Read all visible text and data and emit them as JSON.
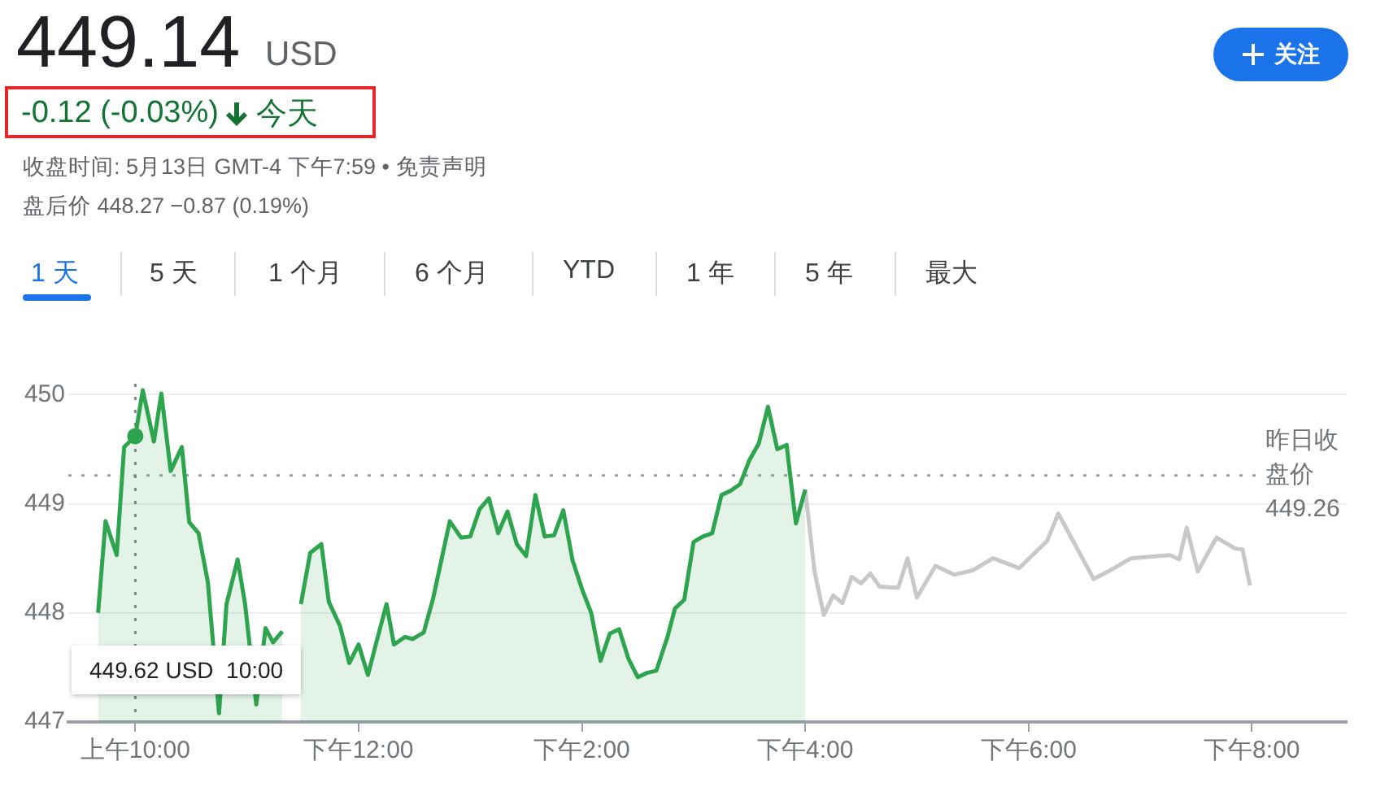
{
  "chart_data": {
    "type": "area",
    "title": "449.14",
    "subtitle": "-0.12 (-0.03%)",
    "annotations": [
      "USD",
      "今天",
      "收盘时间: 5月13日 GMT-4 下午7:59 • 免责声明",
      "盘后价 448.27 −0.87 (0.19%)",
      "1 天",
      "5 天",
      "1 个月",
      "6 个月",
      "YTD",
      "1 年",
      "5 年",
      "最大",
      "关注",
      "449.62 USD  10:00",
      "449.26"
    ],
    "series": [
      {
        "color": "#2ea44f",
        "x": [
          "--05-13T09:40",
          "--05-13T09:44",
          "--05-13T09:50",
          "--05-13T09:54",
          "--05-13T10:00",
          "--05-13T10:04",
          "--05-13T10:10",
          "--05-13T10:14",
          "--05-13T10:19",
          "--05-13T10:25",
          "--05-13T10:29",
          "--05-13T10:34",
          "--05-13T10:39",
          "--05-13T10:45",
          "--05-13T10:49",
          "--05-13T10:55",
          "--05-13T10:59",
          "--05-13T11:05",
          "--05-13T11:10",
          "--05-13T11:14",
          "--05-13T11:19",
          "--05-13T11:23",
          "--05-13T11:29",
          "--05-13T11:34",
          "--05-13T11:40",
          "--05-13T11:44",
          "--05-13T11:50",
          "--05-13T11:55",
          "--05-13T12:00",
          "--05-13T12:05",
          "--05-13T12:10",
          "--05-13T12:15",
          "--05-13T12:19",
          "--05-13T12:25",
          "--05-13T12:29",
          "--05-13T12:35",
          "--05-13T12:40",
          "--05-13T12:49",
          "--05-13T12:55",
          "--05-13T13:00",
          "--05-13T13:05",
          "--05-13T13:10",
          "--05-13T13:15",
          "--05-13T13:20",
          "--05-13T13:25",
          "--05-13T13:30",
          "--05-13T13:35",
          "--05-13T13:40",
          "--05-13T13:45",
          "--05-13T13:50",
          "--05-13T13:55",
          "--05-13T14:00",
          "--05-13T14:05",
          "--05-13T14:10",
          "--05-13T14:15",
          "--05-13T14:20",
          "--05-13T14:25",
          "--05-13T14:30",
          "--05-13T14:35",
          "--05-13T14:40",
          "--05-13T14:46",
          "--05-13T14:50",
          "--05-13T14:55",
          "--05-13T15:00",
          "--05-13T15:05",
          "--05-13T15:10",
          "--05-13T15:15",
          "--05-13T15:20",
          "--05-13T15:25",
          "--05-13T15:30",
          "--05-13T15:35",
          "--05-13T15:40",
          "--05-13T15:45",
          "--05-13T15:50",
          "--05-13T15:55",
          "--05-13T16:00"
        ],
        "values": [
          448.0,
          448.84,
          448.53,
          449.52,
          449.62,
          450.04,
          449.57,
          450.01,
          449.3,
          449.52,
          448.83,
          448.73,
          448.28,
          447.08,
          448.08,
          448.49,
          448.08,
          447.16,
          447.86,
          447.73,
          447.83,
          null,
          448.08,
          448.55,
          448.63,
          448.1,
          447.88,
          447.54,
          447.71,
          447.43,
          447.76,
          448.08,
          447.71,
          447.78,
          447.76,
          447.82,
          448.13,
          448.84,
          448.69,
          448.7,
          448.95,
          449.05,
          448.73,
          448.93,
          448.63,
          448.52,
          449.08,
          448.7,
          448.71,
          448.94,
          448.48,
          448.22,
          448.0,
          447.56,
          447.81,
          447.85,
          447.58,
          447.41,
          447.45,
          447.47,
          447.78,
          448.04,
          448.12,
          448.65,
          448.7,
          448.73,
          449.08,
          449.12,
          449.18,
          449.4,
          449.55,
          449.89,
          449.5,
          449.54,
          448.82,
          449.13
        ]
      },
      {
        "type": "line",
        "color": "#c8c8c8",
        "x": [
          "--05-13T16:00",
          "--05-13T16:05",
          "--05-13T16:10",
          "--05-13T16:15",
          "--05-13T16:20",
          "--05-13T16:25",
          "--05-13T16:30",
          "--05-13T16:35",
          "--05-13T16:40",
          "--05-13T16:50",
          "--05-13T16:55",
          "--05-13T17:00",
          "--05-13T17:10",
          "--05-13T17:20",
          "--05-13T17:30",
          "--05-13T17:41",
          "--05-13T17:55",
          "--05-13T18:10",
          "--05-13T18:16",
          "--05-13T18:35",
          "--05-13T18:45",
          "--05-13T18:55",
          "--05-13T19:16",
          "--05-13T19:21",
          "--05-13T19:25",
          "--05-13T19:31",
          "--05-13T19:41",
          "--05-13T19:51",
          "--05-13T19:55",
          "--05-13T19:59"
        ],
        "values": [
          449.13,
          448.38,
          447.98,
          448.16,
          448.09,
          448.33,
          448.27,
          448.36,
          448.24,
          448.23,
          448.5,
          448.14,
          448.43,
          448.35,
          448.39,
          448.5,
          448.41,
          448.66,
          448.91,
          448.31,
          448.4,
          448.5,
          448.53,
          448.49,
          448.78,
          448.38,
          448.69,
          448.59,
          448.58,
          448.25
        ]
      },
      {
        "type": "scatter",
        "marker": "circle",
        "color": "#2ea44f",
        "x": [
          "--05-13T10:00"
        ],
        "values": [
          449.62
        ]
      }
    ],
    "xlim": [
      "--05-13T09:24",
      "--05-13T20:51"
    ],
    "xticks": [
      {
        "value": "--05-13T10:00",
        "label": "上午10:00"
      },
      {
        "value": "--05-13T12:00",
        "label": "下午12:00"
      },
      {
        "value": "--05-13T14:00",
        "label": "下午2:00"
      },
      {
        "value": "--05-13T16:00",
        "label": "下午4:00"
      },
      {
        "value": "--05-13T18:00",
        "label": "下午6:00"
      },
      {
        "value": "--05-13T20:00",
        "label": "下午8:00"
      }
    ],
    "ylim": [
      447,
      450.1
    ],
    "yticks": [
      447,
      448,
      449,
      450
    ],
    "ref_lines": [
      {
        "axis": "y",
        "value": 449.26,
        "label": "昨日收盘价",
        "line_style": "dotted",
        "color": "#9aa0a6"
      },
      {
        "axis": "x",
        "value": "--05-13T10:00",
        "line_style": "dotted",
        "color": "#80868b"
      }
    ],
    "grid": "y",
    "legend": false,
    "marker": "none",
    "line_style": "solid"
  }
}
